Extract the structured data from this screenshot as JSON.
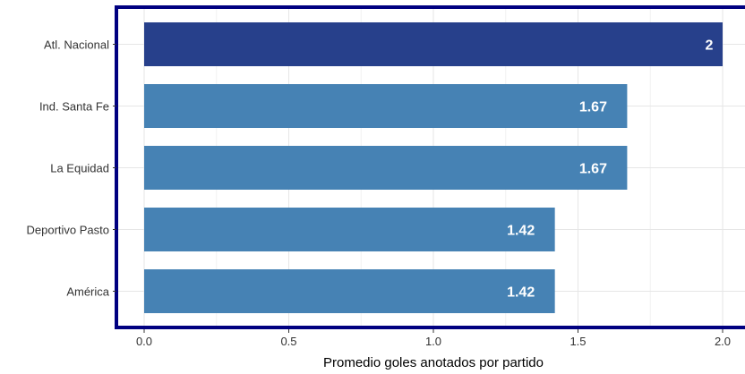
{
  "chart_data": {
    "type": "bar",
    "orientation": "horizontal",
    "categories": [
      "Atl. Nacional",
      "Ind. Santa Fe",
      "La Equidad",
      "Deportivo Pasto",
      "América"
    ],
    "values": [
      2,
      1.67,
      1.67,
      1.42,
      1.42
    ],
    "value_labels": [
      "2",
      "1.67",
      "1.67",
      "1.42",
      "1.42"
    ],
    "highlight_index": 0,
    "xlabel": "Promedio goles anotados por partido",
    "ylabel": "",
    "xlim": [
      -0.1,
      2.05
    ],
    "xticks": [
      0,
      0.5,
      1,
      1.5,
      2
    ],
    "xtick_labels": [
      "0.0",
      "0.5",
      "1.0",
      "1.5",
      "2.0"
    ],
    "grid": true,
    "legend": "none",
    "colors": {
      "highlight": "#27408B",
      "bar": "#4682B4",
      "panel_border": "#000080",
      "grid": "#E6E6E6",
      "value_text": "#FFFFFF"
    }
  }
}
